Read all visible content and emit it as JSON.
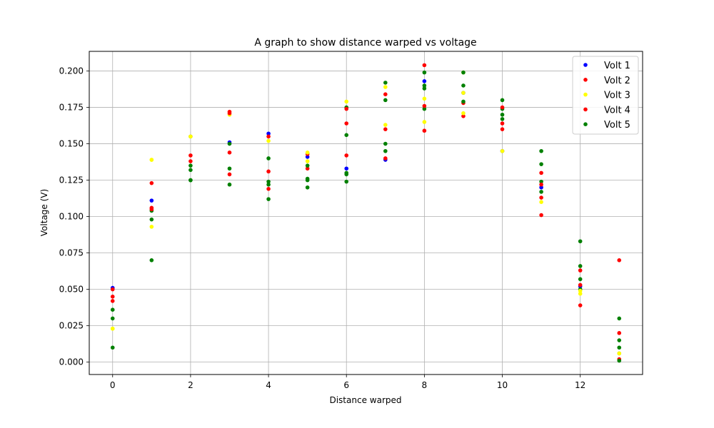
{
  "chart_data": {
    "type": "scatter",
    "title": "A graph to show distance warped vs voltage",
    "xlabel": "Distance warped",
    "ylabel": "Voltage (V)",
    "xlim": [
      -0.6,
      13.6
    ],
    "ylim": [
      -0.0085,
      0.2135
    ],
    "xticks": [
      0,
      2,
      4,
      6,
      8,
      10,
      12
    ],
    "xtick_labels": [
      "0",
      "2",
      "4",
      "6",
      "8",
      "10",
      "12"
    ],
    "yticks": [
      0,
      0.025,
      0.05,
      0.075,
      0.1,
      0.125,
      0.15,
      0.175,
      0.2
    ],
    "ytick_labels": [
      "0.000",
      "0.025",
      "0.050",
      "0.075",
      "0.100",
      "0.125",
      "0.150",
      "0.175",
      "0.200"
    ],
    "grid": true,
    "legend": {
      "position": "top-right"
    },
    "series": [
      {
        "name": "Volt 1",
        "color": "#0000ff",
        "x": [
          0,
          1,
          2,
          3,
          4,
          5,
          6,
          7,
          8,
          9,
          10,
          11,
          12,
          13
        ],
        "y": [
          0.051,
          0.111,
          0.155,
          0.151,
          0.157,
          0.141,
          0.133,
          0.139,
          0.193,
          0.185,
          0.145,
          0.12,
          0.052,
          0.006
        ]
      },
      {
        "name": "Volt 2",
        "color": "#ff0000",
        "x": [
          0,
          1,
          2,
          3,
          4,
          5,
          6,
          7,
          8,
          9,
          10,
          11,
          12,
          13
        ],
        "y": [
          0.05,
          0.123,
          0.142,
          0.144,
          0.131,
          0.143,
          0.164,
          0.184,
          0.204,
          0.178,
          0.164,
          0.13,
          0.063,
          0.07
        ]
      },
      {
        "name": "Volt 3",
        "color": "#ffff00",
        "x": [
          0,
          1,
          2,
          3,
          4,
          5,
          6,
          7,
          8,
          9,
          10,
          11,
          12,
          13
        ],
        "y": [
          0.023,
          0.139,
          0.155,
          0.17,
          0.152,
          0.138,
          0.179,
          0.189,
          0.181,
          0.199,
          0.145,
          0.11,
          0.047,
          0.006
        ]
      },
      {
        "name": "Volt 4",
        "color": "#ff0000",
        "x": [
          0,
          1,
          2,
          3,
          4,
          5,
          6,
          7,
          8,
          9,
          10,
          11,
          12,
          13
        ],
        "y": [
          0.045,
          0.106,
          0.138,
          0.172,
          0.119,
          0.133,
          0.142,
          0.14,
          0.159,
          0.169,
          0.16,
          0.101,
          0.039,
          0.002
        ]
      },
      {
        "name": "Volt 5",
        "color": "#008000",
        "x": [
          0,
          1,
          2,
          3,
          4,
          5,
          6,
          7,
          8,
          9,
          10,
          11,
          12,
          13
        ],
        "y": [
          0.01,
          0.07,
          0.125,
          0.122,
          0.112,
          0.12,
          0.124,
          0.145,
          0.174,
          0.179,
          0.167,
          0.117,
          0.083,
          0.001
        ]
      }
    ],
    "extra_points": {
      "color_series": [
        "Volt 1",
        "Volt 2",
        "Volt 3",
        "Volt 4",
        "Volt 5"
      ],
      "points": [
        [
          0,
          0.036,
          4
        ],
        [
          0,
          0.03,
          4
        ],
        [
          0,
          0.042,
          1
        ],
        [
          0,
          0.023,
          2
        ],
        [
          1,
          0.104,
          4
        ],
        [
          1,
          0.098,
          4
        ],
        [
          1,
          0.093,
          2
        ],
        [
          1,
          0.105,
          1
        ],
        [
          1,
          0.139,
          2
        ],
        [
          2,
          0.135,
          4
        ],
        [
          2,
          0.132,
          4
        ],
        [
          2,
          0.125,
          4
        ],
        [
          2,
          0.155,
          2
        ],
        [
          3,
          0.133,
          4
        ],
        [
          3,
          0.129,
          1
        ],
        [
          3,
          0.15,
          4
        ],
        [
          3,
          0.171,
          1
        ],
        [
          4,
          0.14,
          4
        ],
        [
          4,
          0.124,
          4
        ],
        [
          4,
          0.155,
          1
        ],
        [
          4,
          0.122,
          4
        ],
        [
          5,
          0.126,
          4
        ],
        [
          5,
          0.125,
          4
        ],
        [
          5,
          0.135,
          4
        ],
        [
          5,
          0.144,
          2
        ],
        [
          6,
          0.13,
          4
        ],
        [
          6,
          0.156,
          4
        ],
        [
          6,
          0.175,
          4
        ],
        [
          6,
          0.174,
          1
        ],
        [
          6,
          0.129,
          4
        ],
        [
          7,
          0.18,
          4
        ],
        [
          7,
          0.192,
          4
        ],
        [
          7,
          0.15,
          4
        ],
        [
          7,
          0.16,
          1
        ],
        [
          7,
          0.163,
          2
        ],
        [
          8,
          0.199,
          4
        ],
        [
          8,
          0.19,
          4
        ],
        [
          8,
          0.188,
          4
        ],
        [
          8,
          0.176,
          1
        ],
        [
          8,
          0.165,
          2
        ],
        [
          9,
          0.19,
          4
        ],
        [
          9,
          0.199,
          4
        ],
        [
          9,
          0.185,
          2
        ],
        [
          9,
          0.171,
          2
        ],
        [
          10,
          0.18,
          4
        ],
        [
          10,
          0.174,
          4
        ],
        [
          10,
          0.17,
          4
        ],
        [
          10,
          0.175,
          1
        ],
        [
          11,
          0.145,
          4
        ],
        [
          11,
          0.136,
          4
        ],
        [
          11,
          0.124,
          4
        ],
        [
          11,
          0.113,
          1
        ],
        [
          11,
          0.122,
          1
        ],
        [
          12,
          0.066,
          4
        ],
        [
          12,
          0.057,
          4
        ],
        [
          12,
          0.05,
          4
        ],
        [
          12,
          0.053,
          1
        ],
        [
          12,
          0.049,
          2
        ],
        [
          13,
          0.03,
          4
        ],
        [
          13,
          0.02,
          1
        ],
        [
          13,
          0.015,
          4
        ],
        [
          13,
          0.01,
          4
        ],
        [
          13,
          0.006,
          2
        ]
      ]
    }
  }
}
